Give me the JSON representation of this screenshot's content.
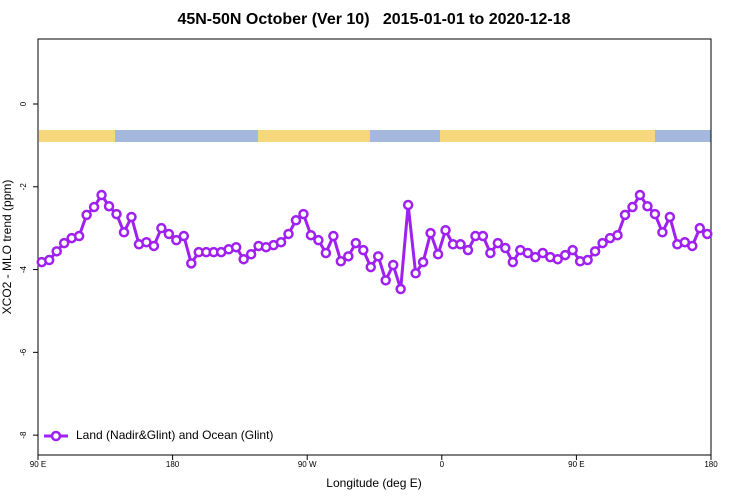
{
  "chart_data": {
    "type": "line",
    "title": "45N-50N October (Ver 10)   2015-01-01 to 2020-12-18",
    "x_label": "Longitude (deg E)",
    "y_label": "XCO2 - MLO trend (ppm)",
    "xlim": [
      90,
      540
    ],
    "ylim": [
      -8.48,
      1.57
    ],
    "xticks": [
      {
        "value": 90,
        "label": "90 E"
      },
      180,
      {
        "value": 270,
        "label": "90 W"
      },
      {
        "value": 360,
        "label": "0"
      },
      {
        "value": 450,
        "label": "90 E"
      },
      {
        "value": 540,
        "label": "180"
      }
    ],
    "yticks": [
      0,
      -2,
      -4,
      -6,
      -8
    ],
    "legend": "bottom-left",
    "x": [
      92.5,
      97.5,
      102.5,
      107.5,
      112.5,
      117.5,
      122.5,
      127.5,
      132.5,
      137.5,
      142.5,
      147.5,
      152.5,
      157.5,
      162.5,
      167.5,
      172.5,
      177.5,
      182.5,
      187.5,
      192.5,
      197.5,
      202.5,
      207.5,
      212.5,
      217.5,
      222.5,
      227.5,
      232.5,
      237.5,
      242.5,
      247.5,
      252.5,
      257.5,
      262.5,
      267.5,
      272.5,
      277.5,
      282.5,
      287.5,
      292.5,
      297.5,
      302.5,
      307.5,
      312.5,
      317.5,
      322.5,
      327.5,
      332.5,
      337.5,
      342.5,
      347.5,
      352.5,
      357.5,
      362.5,
      367.5,
      372.5,
      377.5,
      382.5,
      387.5,
      392.5,
      397.5,
      402.5,
      407.5,
      412.5,
      417.5,
      422.5,
      427.5,
      432.5,
      437.5,
      442.5,
      447.5,
      452.5,
      457.5,
      462.5,
      467.5,
      472.5,
      477.5,
      482.5,
      487.5,
      492.5,
      497.5,
      502.5,
      507.5,
      512.5,
      517.5,
      522.5,
      527.5,
      532.5,
      537.5
    ],
    "series": [
      {
        "name": "Land (Nadir&Glint) and Ocean (Glint)",
        "color": "#a020f0",
        "values": [
          -3.82,
          -3.77,
          -3.56,
          -3.36,
          -3.24,
          -3.19,
          -2.68,
          -2.49,
          -2.2,
          -2.47,
          -2.66,
          -3.1,
          -2.73,
          -3.39,
          -3.34,
          -3.43,
          -3.0,
          -3.14,
          -3.29,
          -3.19,
          -3.85,
          -3.58,
          -3.58,
          -3.58,
          -3.58,
          -3.51,
          -3.46,
          -3.75,
          -3.63,
          -3.43,
          -3.46,
          -3.41,
          -3.34,
          -3.14,
          -2.81,
          -2.66,
          -3.17,
          -3.29,
          -3.6,
          -3.19,
          -3.8,
          -3.68,
          -3.36,
          -3.53,
          -3.94,
          -3.68,
          -4.26,
          -3.89,
          -4.47,
          -2.44,
          -4.09,
          -3.82,
          -3.12,
          -3.63,
          -3.05,
          -3.39,
          -3.39,
          -3.53,
          -3.19,
          -3.19,
          -3.6,
          -3.36,
          -3.48,
          -3.82,
          -3.53,
          -3.6,
          -3.7,
          -3.6,
          -3.7,
          -3.75,
          -3.65,
          -3.53,
          -3.8,
          -3.77,
          -3.56,
          -3.36,
          -3.24,
          -3.17,
          -2.68,
          -2.49,
          -2.2,
          -2.47,
          -2.66,
          -3.1,
          -2.73,
          -3.39,
          -3.34,
          -3.43,
          -3.0,
          -3.14
        ]
      }
    ]
  }
}
